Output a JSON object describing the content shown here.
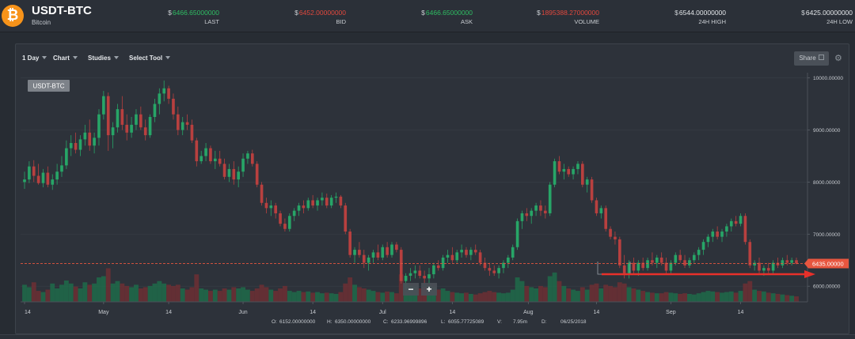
{
  "header": {
    "market": "USDT-BTC",
    "currency_name": "Bitcoin",
    "icon": "bitcoin-icon",
    "currency_symbol": "$",
    "stats": [
      {
        "key": "last",
        "value": "6466.65000000",
        "label": "LAST",
        "tone": "up"
      },
      {
        "key": "bid",
        "value": "6452.00000000",
        "label": "BID",
        "tone": "down"
      },
      {
        "key": "ask",
        "value": "6466.65000000",
        "label": "ASK",
        "tone": "up"
      },
      {
        "key": "volume",
        "value": "1895388.27000000",
        "label": "VOLUME",
        "tone": "down"
      },
      {
        "key": "high",
        "value": "6544.00000000",
        "label": "24H HIGH",
        "tone": "neutral"
      },
      {
        "key": "low",
        "value": "6425.00000000",
        "label": "24H LOW",
        "tone": "neutral"
      }
    ]
  },
  "toolbar": {
    "interval": "1 Day",
    "chart": "Chart",
    "studies": "Studies",
    "select_tool": "Select Tool",
    "share": "Share"
  },
  "colors": {
    "up": "#2fbd63",
    "down": "#e2483d",
    "up_candle": "#27a567",
    "down_candle": "#b8403f",
    "arrow": "#e8302a",
    "price_tag": "#e8563f"
  },
  "ohlc_readout": {
    "O": "6152.00000000",
    "H": "6350.00000000",
    "C": "6233.96999896",
    "L": "6055.77725089",
    "V": "7.95m",
    "D": "06/25/2018"
  },
  "zoom_controls": {
    "minus": "−",
    "plus": "+"
  },
  "chart_data": {
    "type": "candlestick",
    "title": "USDT-BTC",
    "x_tick_labels": [
      "14",
      "May",
      "14",
      "Jun",
      "14",
      "Jul",
      "14",
      "Aug",
      "14",
      "Sep",
      "14"
    ],
    "y_tick_labels": [
      "10000.00000",
      "9000.00000",
      "8000.00000",
      "7000.00000",
      "6000.00000"
    ],
    "ylim": [
      5700,
      10100
    ],
    "current_price_label": "6435.00000",
    "current_price": 6435,
    "volume_ylim": [
      0,
      75
    ],
    "candles": [
      [
        8000,
        8200,
        7870,
        8050,
        28
      ],
      [
        8050,
        8400,
        7980,
        8300,
        24
      ],
      [
        8300,
        8420,
        8000,
        8120,
        32
      ],
      [
        8120,
        8350,
        7950,
        7980,
        18
      ],
      [
        7980,
        8250,
        7900,
        8180,
        16
      ],
      [
        8180,
        8300,
        7900,
        7950,
        20
      ],
      [
        7950,
        8150,
        7850,
        8050,
        30
      ],
      [
        8050,
        8350,
        7950,
        8200,
        22
      ],
      [
        8200,
        8500,
        8100,
        8320,
        28
      ],
      [
        8320,
        8800,
        8250,
        8650,
        35
      ],
      [
        8650,
        8900,
        8500,
        8750,
        30
      ],
      [
        8750,
        8950,
        8550,
        8620,
        25
      ],
      [
        8620,
        8900,
        8500,
        8820,
        22
      ],
      [
        8820,
        9100,
        8700,
        8950,
        32
      ],
      [
        8950,
        9200,
        8600,
        8700,
        28
      ],
      [
        8700,
        8950,
        8550,
        8850,
        30
      ],
      [
        8850,
        9400,
        8700,
        9300,
        40
      ],
      [
        9300,
        9750,
        9200,
        9650,
        42
      ],
      [
        9650,
        9720,
        8600,
        8900,
        55
      ],
      [
        8900,
        9150,
        8650,
        9050,
        30
      ],
      [
        9050,
        9500,
        8950,
        9400,
        34
      ],
      [
        9400,
        9650,
        9000,
        9100,
        30
      ],
      [
        9100,
        9300,
        8800,
        8950,
        26
      ],
      [
        8950,
        9250,
        8850,
        9100,
        24
      ],
      [
        9100,
        9400,
        9000,
        9300,
        28
      ],
      [
        9300,
        9450,
        9000,
        9050,
        22
      ],
      [
        9050,
        9200,
        8800,
        8900,
        24
      ],
      [
        8900,
        9300,
        8850,
        9250,
        26
      ],
      [
        9250,
        9600,
        9150,
        9500,
        30
      ],
      [
        9500,
        9800,
        9300,
        9700,
        34
      ],
      [
        9700,
        9950,
        9550,
        9800,
        30
      ],
      [
        9800,
        9850,
        9500,
        9600,
        28
      ],
      [
        9600,
        9700,
        9200,
        9300,
        26
      ],
      [
        9300,
        9450,
        8900,
        9000,
        28
      ],
      [
        9000,
        9250,
        8900,
        9150,
        22
      ],
      [
        9150,
        9300,
        9000,
        9100,
        20
      ],
      [
        9100,
        9200,
        8750,
        8800,
        24
      ],
      [
        8800,
        8850,
        8300,
        8400,
        45
      ],
      [
        8400,
        8600,
        8350,
        8500,
        22
      ],
      [
        8500,
        8750,
        8400,
        8650,
        20
      ],
      [
        8650,
        8700,
        8350,
        8400,
        18
      ],
      [
        8400,
        8600,
        8250,
        8450,
        20
      ],
      [
        8450,
        8600,
        8300,
        8350,
        18
      ],
      [
        8350,
        8450,
        8050,
        8100,
        22
      ],
      [
        8100,
        8350,
        8000,
        8250,
        20
      ],
      [
        8250,
        8400,
        7950,
        8050,
        24
      ],
      [
        8050,
        8300,
        7900,
        8200,
        22
      ],
      [
        8200,
        8550,
        8100,
        8450,
        24
      ],
      [
        8450,
        8600,
        8350,
        8550,
        20
      ],
      [
        8550,
        8620,
        8300,
        8350,
        18
      ],
      [
        8350,
        8400,
        7900,
        7950,
        22
      ],
      [
        7950,
        8000,
        7550,
        7600,
        28
      ],
      [
        7600,
        7700,
        7400,
        7500,
        24
      ],
      [
        7500,
        7650,
        7350,
        7550,
        20
      ],
      [
        7550,
        7600,
        7300,
        7400,
        18
      ],
      [
        7400,
        7450,
        7150,
        7200,
        22
      ],
      [
        7200,
        7300,
        7050,
        7100,
        26
      ],
      [
        7100,
        7400,
        7050,
        7350,
        18
      ],
      [
        7350,
        7500,
        7250,
        7450,
        16
      ],
      [
        7450,
        7600,
        7350,
        7550,
        18
      ],
      [
        7550,
        7650,
        7400,
        7500,
        16
      ],
      [
        7500,
        7700,
        7450,
        7650,
        17
      ],
      [
        7650,
        7750,
        7500,
        7550,
        15
      ],
      [
        7550,
        7700,
        7450,
        7650,
        16
      ],
      [
        7650,
        7800,
        7550,
        7700,
        14
      ],
      [
        7700,
        7780,
        7500,
        7550,
        15
      ],
      [
        7550,
        7750,
        7500,
        7700,
        14
      ],
      [
        7700,
        7800,
        7600,
        7720,
        13
      ],
      [
        7720,
        7750,
        7500,
        7550,
        16
      ],
      [
        7550,
        7600,
        7000,
        7050,
        30
      ],
      [
        7050,
        7100,
        6550,
        6600,
        40
      ],
      [
        6600,
        6750,
        6450,
        6700,
        28
      ],
      [
        6700,
        6850,
        6550,
        6600,
        24
      ],
      [
        6600,
        6700,
        6350,
        6450,
        22
      ],
      [
        6450,
        6600,
        6300,
        6550,
        20
      ],
      [
        6550,
        6700,
        6450,
        6650,
        18
      ],
      [
        6650,
        6800,
        6500,
        6550,
        16
      ],
      [
        6550,
        6800,
        6500,
        6750,
        15
      ],
      [
        6750,
        6850,
        6550,
        6600,
        17
      ],
      [
        6600,
        6850,
        6550,
        6800,
        16
      ],
      [
        6800,
        6850,
        6650,
        6700,
        14
      ],
      [
        6700,
        6750,
        6050,
        6100,
        45
      ],
      [
        6100,
        6250,
        5950,
        6200,
        30
      ],
      [
        6200,
        6350,
        6100,
        6250,
        26
      ],
      [
        6250,
        6400,
        6150,
        6300,
        24
      ],
      [
        6300,
        6400,
        6150,
        6200,
        22
      ],
      [
        6200,
        6300,
        6050,
        6150,
        24
      ],
      [
        6150,
        6350,
        6050,
        6230,
        26
      ],
      [
        6230,
        6450,
        6150,
        6400,
        24
      ],
      [
        6400,
        6500,
        6300,
        6350,
        20
      ],
      [
        6350,
        6600,
        6300,
        6550,
        22
      ],
      [
        6550,
        6700,
        6450,
        6600,
        18
      ],
      [
        6600,
        6750,
        6450,
        6500,
        16
      ],
      [
        6500,
        6700,
        6450,
        6650,
        15
      ],
      [
        6650,
        6800,
        6550,
        6700,
        14
      ],
      [
        6700,
        6750,
        6550,
        6600,
        15
      ],
      [
        6600,
        6750,
        6500,
        6700,
        13
      ],
      [
        6700,
        6800,
        6600,
        6650,
        12
      ],
      [
        6650,
        6700,
        6400,
        6450,
        14
      ],
      [
        6450,
        6550,
        6300,
        6350,
        16
      ],
      [
        6350,
        6450,
        6200,
        6300,
        18
      ],
      [
        6300,
        6400,
        6200,
        6250,
        16
      ],
      [
        6250,
        6400,
        6150,
        6350,
        15
      ],
      [
        6350,
        6500,
        6250,
        6450,
        14
      ],
      [
        6450,
        6600,
        6350,
        6550,
        15
      ],
      [
        6550,
        6800,
        6500,
        6750,
        20
      ],
      [
        6750,
        7300,
        6700,
        7250,
        40
      ],
      [
        7250,
        7450,
        7100,
        7400,
        34
      ],
      [
        7400,
        7500,
        7250,
        7350,
        26
      ],
      [
        7350,
        7500,
        7200,
        7450,
        24
      ],
      [
        7450,
        7600,
        7350,
        7550,
        22
      ],
      [
        7550,
        7650,
        7350,
        7450,
        26
      ],
      [
        7450,
        7550,
        7300,
        7400,
        24
      ],
      [
        7400,
        8000,
        7350,
        7950,
        42
      ],
      [
        7950,
        8450,
        7900,
        8400,
        48
      ],
      [
        8400,
        8500,
        8150,
        8200,
        34
      ],
      [
        8200,
        8350,
        8050,
        8250,
        26
      ],
      [
        8250,
        8300,
        8100,
        8150,
        22
      ],
      [
        8150,
        8300,
        8050,
        8250,
        20
      ],
      [
        8250,
        8400,
        8150,
        8350,
        18
      ],
      [
        8350,
        8400,
        7900,
        7950,
        24
      ],
      [
        7950,
        8100,
        7800,
        8050,
        20
      ],
      [
        8050,
        8100,
        7600,
        7650,
        28
      ],
      [
        7650,
        7700,
        7350,
        7400,
        30
      ],
      [
        7400,
        7550,
        7300,
        7500,
        22
      ],
      [
        7500,
        7550,
        7050,
        7100,
        28
      ],
      [
        7100,
        7150,
        6900,
        6950,
        26
      ],
      [
        6950,
        7050,
        6800,
        6900,
        24
      ],
      [
        6900,
        6950,
        6350,
        6400,
        32
      ],
      [
        6400,
        6600,
        6150,
        6250,
        30
      ],
      [
        6250,
        6500,
        6150,
        6450,
        24
      ],
      [
        6450,
        6550,
        6250,
        6300,
        22
      ],
      [
        6300,
        6500,
        6200,
        6450,
        20
      ],
      [
        6450,
        6550,
        6300,
        6350,
        18
      ],
      [
        6350,
        6550,
        6300,
        6500,
        16
      ],
      [
        6500,
        6650,
        6400,
        6450,
        15
      ],
      [
        6450,
        6600,
        6350,
        6550,
        14
      ],
      [
        6550,
        6650,
        6400,
        6450,
        14
      ],
      [
        6450,
        6550,
        6250,
        6300,
        16
      ],
      [
        6300,
        6500,
        6250,
        6450,
        15
      ],
      [
        6450,
        6650,
        6400,
        6600,
        14
      ],
      [
        6600,
        6700,
        6450,
        6500,
        13
      ],
      [
        6500,
        6600,
        6350,
        6400,
        14
      ],
      [
        6400,
        6550,
        6350,
        6500,
        13
      ],
      [
        6500,
        6650,
        6450,
        6600,
        12
      ],
      [
        6600,
        6750,
        6500,
        6700,
        14
      ],
      [
        6700,
        6900,
        6600,
        6850,
        16
      ],
      [
        6850,
        7000,
        6750,
        6950,
        18
      ],
      [
        6950,
        7100,
        6850,
        7050,
        17
      ],
      [
        7050,
        7150,
        6900,
        6950,
        16
      ],
      [
        6950,
        7100,
        6850,
        7050,
        15
      ],
      [
        7050,
        7200,
        6950,
        7150,
        16
      ],
      [
        7150,
        7300,
        7050,
        7250,
        17
      ],
      [
        7250,
        7350,
        7150,
        7200,
        15
      ],
      [
        7200,
        7400,
        7150,
        7350,
        18
      ],
      [
        7350,
        7400,
        6800,
        6850,
        30
      ],
      [
        6850,
        6900,
        6350,
        6400,
        34
      ],
      [
        6400,
        6500,
        6300,
        6450,
        20
      ],
      [
        6450,
        6550,
        6250,
        6300,
        18
      ],
      [
        6300,
        6400,
        6200,
        6350,
        17
      ],
      [
        6350,
        6450,
        6250,
        6300,
        15
      ],
      [
        6300,
        6500,
        6250,
        6450,
        14
      ],
      [
        6450,
        6550,
        6350,
        6400,
        13
      ],
      [
        6400,
        6550,
        6350,
        6500,
        12
      ],
      [
        6500,
        6600,
        6400,
        6450,
        11
      ],
      [
        6450,
        6550,
        6400,
        6500,
        10
      ],
      [
        6500,
        6550,
        6420,
        6435,
        9
      ]
    ]
  }
}
